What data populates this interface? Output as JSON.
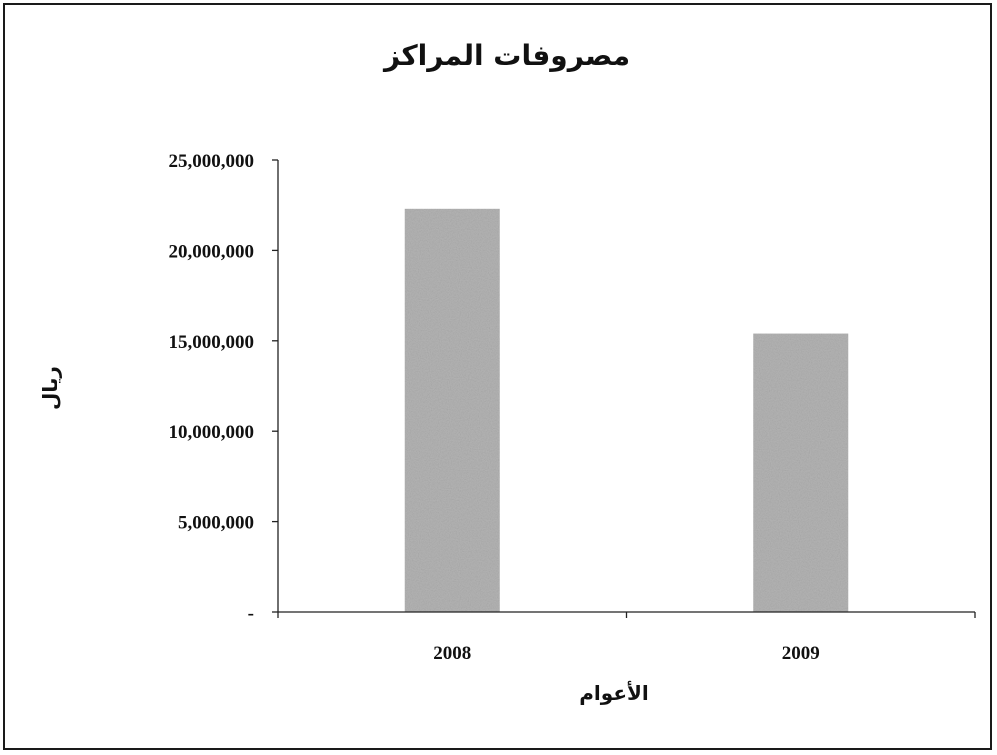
{
  "chart_data": {
    "type": "bar",
    "title": "مصروفات المراكز",
    "xlabel": "الأعوام",
    "ylabel": "ريال",
    "categories": [
      "2008",
      "2009"
    ],
    "series": [
      {
        "values": [
          22300000,
          15400000
        ]
      }
    ],
    "ylim": [
      0,
      25000000
    ],
    "yticks": [
      0,
      5000000,
      10000000,
      15000000,
      20000000,
      25000000
    ],
    "ytick_labels": [
      "-",
      "5,000,000",
      "10,000,000",
      "15,000,000",
      "20,000,000",
      "25,000,000"
    ],
    "grid": false,
    "legend": "none",
    "bar_color": "#b4b4b4"
  }
}
